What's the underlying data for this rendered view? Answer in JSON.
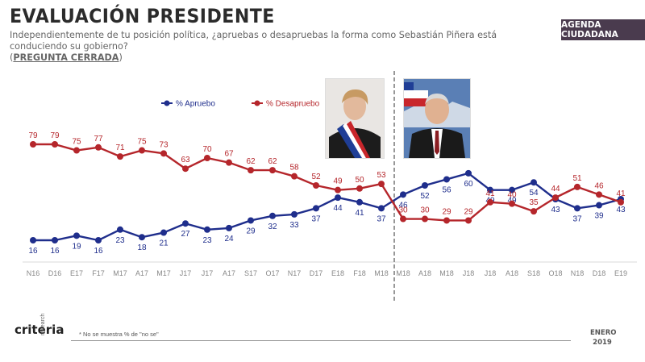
{
  "header": {
    "title": "EVALUACIÓN PRESIDENTE",
    "question": "Independientemente de tu posición política, ¿apruebas o desapruebas la forma como Sebastián Piñera está conduciendo su gobierno?",
    "closed_open": "(",
    "closed_label": "PREGUNTA CERRADA",
    "closed_close": ")",
    "badge": "AGENDA CIUDADANA"
  },
  "chart_data": {
    "type": "line",
    "categories": [
      "N16",
      "D16",
      "E17",
      "F17",
      "M17",
      "A17",
      "M17",
      "J17",
      "J17",
      "A17",
      "S17",
      "O17",
      "N17",
      "D17",
      "E18",
      "F18",
      "M18",
      "M18",
      "A18",
      "M18",
      "J18",
      "J18",
      "A18",
      "S18",
      "O18",
      "N18",
      "D18",
      "E19"
    ],
    "series": [
      {
        "name": "% Apruebo",
        "color": "#1f2e8c",
        "values": [
          16,
          16,
          19,
          16,
          23,
          18,
          21,
          27,
          23,
          24,
          29,
          32,
          33,
          37,
          44,
          41,
          37,
          46,
          52,
          56,
          60,
          49,
          49,
          54,
          43,
          37,
          39,
          43
        ]
      },
      {
        "name": "% Desapruebo",
        "color": "#b5262b",
        "values": [
          79,
          79,
          75,
          77,
          71,
          75,
          73,
          63,
          70,
          67,
          62,
          62,
          58,
          52,
          49,
          50,
          53,
          30,
          30,
          29,
          29,
          41,
          40,
          35,
          44,
          51,
          46,
          41
        ]
      }
    ],
    "legend_position": "top-center"
  },
  "footer": {
    "logo": "criteria",
    "logo_sub": "research",
    "note": "* No se muestra % de \"no se\"",
    "date_month": "ENERO",
    "date_year": "2019"
  }
}
